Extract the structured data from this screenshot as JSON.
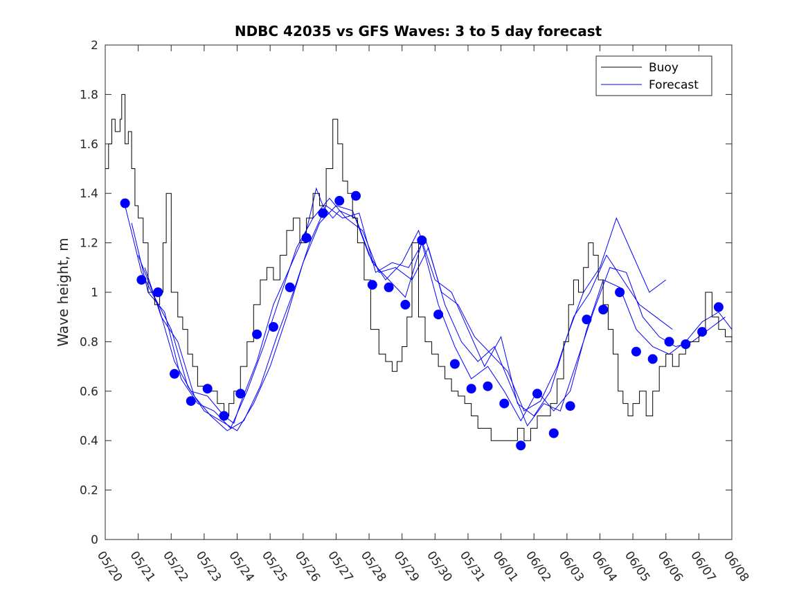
{
  "chart_data": {
    "type": "line",
    "title": "NDBC 42035 vs GFS Waves: 3 to 5 day forecast",
    "xlabel": "",
    "ylabel": "Wave height, m",
    "xlim": [
      "05/20",
      "06/08"
    ],
    "ylim": [
      0,
      2
    ],
    "y_ticks": [
      0,
      0.2,
      0.4,
      0.6,
      0.8,
      1,
      1.2,
      1.4,
      1.6,
      1.8,
      2
    ],
    "x_ticks": [
      "05/20",
      "05/21",
      "05/22",
      "05/23",
      "05/24",
      "05/25",
      "05/26",
      "05/27",
      "05/28",
      "05/29",
      "05/30",
      "05/31",
      "06/01",
      "06/02",
      "06/03",
      "06/04",
      "06/05",
      "06/06",
      "06/07",
      "06/08"
    ],
    "grid": false,
    "legend_position": "top-right",
    "legend": [
      {
        "label": "Buoy",
        "color": "#000000"
      },
      {
        "label": "Forecast",
        "color": "#0000ff"
      }
    ],
    "buoy_color": "#000000",
    "forecast_color": "#0000ff",
    "buoy": {
      "x": [
        0,
        0.1,
        0.2,
        0.3,
        0.45,
        0.5,
        0.6,
        0.7,
        0.8,
        0.9,
        1.0,
        1.15,
        1.3,
        1.5,
        1.65,
        1.75,
        1.85,
        2.0,
        2.2,
        2.35,
        2.5,
        2.65,
        2.8,
        3.0,
        3.2,
        3.4,
        3.6,
        3.75,
        3.9,
        4.1,
        4.3,
        4.5,
        4.7,
        4.9,
        5.1,
        5.3,
        5.5,
        5.7,
        5.9,
        6.1,
        6.3,
        6.5,
        6.7,
        6.9,
        7.05,
        7.2,
        7.35,
        7.5,
        7.65,
        7.85,
        8.05,
        8.3,
        8.5,
        8.7,
        8.85,
        9.0,
        9.15,
        9.3,
        9.5,
        9.7,
        9.9,
        10.1,
        10.3,
        10.5,
        10.7,
        10.9,
        11.1,
        11.3,
        11.5,
        11.7,
        11.9,
        12.1,
        12.3,
        12.5,
        12.7,
        12.9,
        13.1,
        13.3,
        13.5,
        13.7,
        13.9,
        14.05,
        14.2,
        14.35,
        14.5,
        14.65,
        14.8,
        14.95,
        15.1,
        15.25,
        15.4,
        15.55,
        15.7,
        15.85,
        16.0,
        16.2,
        16.4,
        16.6,
        16.8,
        17.0,
        17.2,
        17.4,
        17.6,
        17.8,
        18.0,
        18.2,
        18.4,
        18.6,
        18.8,
        19.0
      ],
      "y": [
        1.5,
        1.6,
        1.7,
        1.65,
        1.7,
        1.8,
        1.6,
        1.65,
        1.5,
        1.35,
        1.3,
        1.2,
        1.0,
        0.95,
        1.0,
        1.2,
        1.4,
        1.0,
        0.9,
        0.85,
        0.75,
        0.7,
        0.62,
        0.6,
        0.6,
        0.55,
        0.5,
        0.55,
        0.6,
        0.7,
        0.8,
        0.95,
        1.05,
        1.1,
        1.05,
        1.15,
        1.25,
        1.3,
        1.2,
        1.3,
        1.4,
        1.35,
        1.5,
        1.7,
        1.6,
        1.45,
        1.4,
        1.3,
        1.2,
        1.05,
        0.85,
        0.75,
        0.72,
        0.68,
        0.72,
        0.78,
        0.9,
        1.2,
        0.9,
        0.8,
        0.75,
        0.7,
        0.65,
        0.6,
        0.58,
        0.55,
        0.5,
        0.45,
        0.45,
        0.4,
        0.4,
        0.4,
        0.4,
        0.45,
        0.4,
        0.45,
        0.5,
        0.5,
        0.55,
        0.65,
        0.8,
        0.95,
        1.05,
        1.0,
        1.1,
        1.2,
        1.15,
        1.05,
        0.95,
        0.85,
        0.75,
        0.6,
        0.55,
        0.5,
        0.55,
        0.6,
        0.5,
        0.6,
        0.7,
        0.75,
        0.7,
        0.75,
        0.8,
        0.8,
        0.85,
        1.0,
        0.9,
        0.85,
        0.82,
        0.8
      ]
    },
    "forecast": {
      "x": [
        0.6,
        1.1,
        1.6,
        2.1,
        2.6,
        3.1,
        3.6,
        4.1,
        4.6,
        5.1,
        5.6,
        6.1,
        6.6,
        7.1,
        7.6,
        8.1,
        8.6,
        9.1,
        9.6,
        10.1,
        10.6,
        11.1,
        11.6,
        12.1,
        12.6,
        13.1,
        13.6,
        14.1,
        14.6,
        15.1,
        15.6,
        16.1,
        16.6,
        17.1,
        17.6,
        18.1,
        18.6
      ],
      "y": [
        1.36,
        1.05,
        1.0,
        0.67,
        0.56,
        0.61,
        0.5,
        0.59,
        0.83,
        0.86,
        1.02,
        1.22,
        1.32,
        1.37,
        1.39,
        1.03,
        1.02,
        0.95,
        1.21,
        0.91,
        0.71,
        0.61,
        0.62,
        0.55,
        0.38,
        0.59,
        0.43,
        0.54,
        0.89,
        0.93,
        1.0,
        0.76,
        0.73,
        0.8,
        0.79,
        0.84,
        0.94
      ]
    },
    "forecast_runs": [
      {
        "x": [
          0.6,
          1.1,
          1.6,
          2.1,
          2.6,
          3.1,
          3.6,
          3.9,
          4.1,
          4.6,
          5.1,
          5.6,
          6.1,
          6.4,
          6.6,
          6.9,
          7.1,
          7.6,
          8.1,
          8.6,
          9.1,
          9.6,
          10.1,
          10.6,
          11.1,
          11.6,
          12.1,
          12.6,
          13.1,
          13.6,
          14.1,
          14.6,
          15.1,
          15.6,
          16.1,
          16.6,
          17.1,
          17.6,
          18.1,
          18.6,
          19.0
        ],
        "y": [
          1.35,
          1.08,
          0.95,
          0.72,
          0.6,
          0.58,
          0.5,
          0.47,
          0.55,
          0.72,
          0.95,
          1.1,
          1.25,
          1.42,
          1.35,
          1.3,
          1.33,
          1.3,
          1.12,
          1.05,
          0.98,
          1.2,
          0.95,
          0.78,
          0.65,
          0.7,
          0.6,
          0.48,
          0.6,
          0.52,
          0.6,
          0.85,
          1.05,
          1.02,
          0.85,
          0.78,
          0.75,
          0.8,
          0.88,
          0.92,
          0.85
        ]
      },
      {
        "x": [
          0.8,
          1.3,
          1.8,
          2.3,
          2.8,
          3.3,
          3.8,
          4.3,
          4.8,
          5.3,
          5.8,
          6.3,
          6.8,
          7.3,
          7.8,
          8.3,
          8.8,
          9.3,
          9.8,
          10.3,
          10.8,
          11.3,
          11.8,
          12.3,
          12.8,
          13.3,
          13.8,
          14.3,
          14.8,
          15.3,
          15.8,
          16.3,
          16.8,
          17.3,
          17.8,
          18.3,
          18.8
        ],
        "y": [
          1.28,
          1.0,
          0.92,
          0.65,
          0.55,
          0.52,
          0.45,
          0.6,
          0.78,
          0.98,
          1.18,
          1.3,
          1.38,
          1.3,
          1.25,
          1.08,
          1.1,
          1.05,
          1.18,
          0.95,
          0.8,
          0.72,
          0.78,
          0.62,
          0.46,
          0.55,
          0.52,
          0.72,
          0.92,
          1.1,
          1.08,
          0.9,
          0.82,
          0.78,
          0.8,
          0.85,
          0.9
        ]
      },
      {
        "x": [
          1.0,
          1.5,
          2.0,
          2.5,
          3.0,
          3.5,
          4.0,
          4.5,
          5.0,
          5.5,
          6.0,
          6.5,
          7.0,
          7.5,
          8.0,
          8.5,
          9.0,
          9.5,
          10.0,
          10.5,
          11.0,
          11.5,
          12.0,
          12.5,
          13.0,
          13.5,
          14.0,
          14.5,
          15.0,
          15.5,
          16.0,
          16.5,
          17.0
        ],
        "y": [
          1.15,
          0.98,
          0.85,
          0.62,
          0.52,
          0.48,
          0.44,
          0.55,
          0.7,
          0.9,
          1.12,
          1.28,
          1.35,
          1.33,
          1.15,
          1.05,
          1.12,
          1.25,
          1.05,
          1.0,
          0.85,
          0.7,
          0.82,
          0.55,
          0.5,
          0.6,
          0.82,
          1.0,
          1.1,
          1.3,
          1.15,
          1.0,
          1.05
        ]
      },
      {
        "x": [
          1.2,
          1.7,
          2.2,
          2.7,
          3.2,
          3.7,
          4.2,
          4.7,
          5.2,
          5.7,
          6.2,
          6.7,
          7.2,
          7.7,
          8.2,
          8.7,
          9.2,
          9.7,
          10.2,
          10.7,
          11.2,
          11.7,
          12.2,
          12.7,
          13.2,
          13.7,
          14.2,
          14.7,
          15.2,
          15.7,
          16.2,
          16.7,
          17.2
        ],
        "y": [
          1.1,
          0.9,
          0.8,
          0.58,
          0.5,
          0.44,
          0.48,
          0.62,
          0.82,
          1.0,
          1.2,
          1.35,
          1.3,
          1.32,
          1.08,
          1.12,
          1.1,
          1.22,
          1.0,
          0.95,
          0.82,
          0.75,
          0.68,
          0.52,
          0.56,
          0.7,
          0.9,
          1.0,
          1.15,
          1.05,
          0.95,
          0.9,
          0.85
        ]
      }
    ]
  }
}
